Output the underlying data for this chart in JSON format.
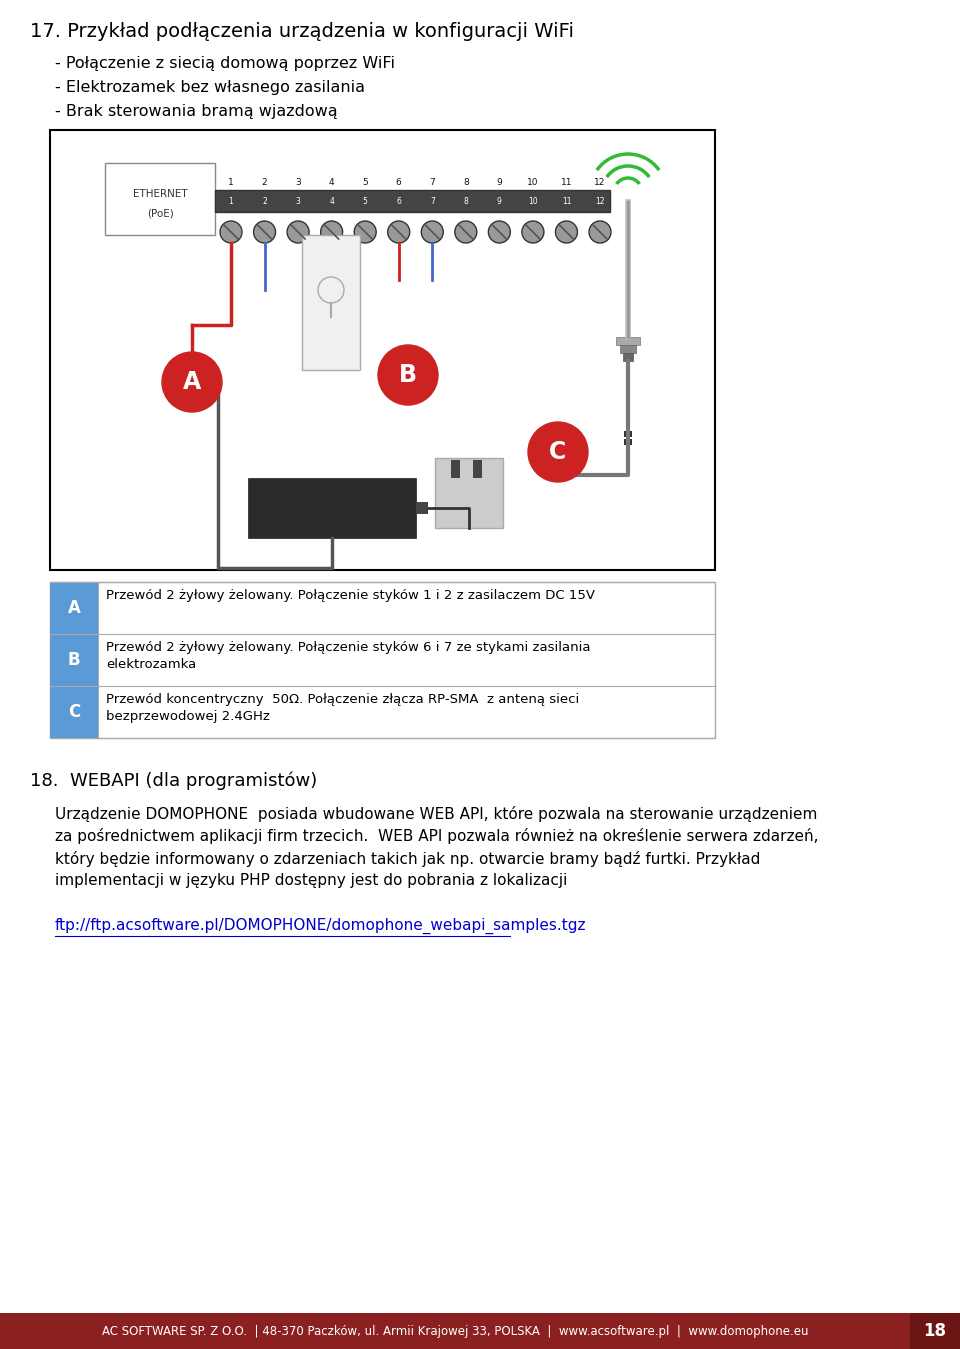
{
  "bg_color": "#ffffff",
  "title": "17. Przykład podłączenia urządzenia w konfiguracji WiFi",
  "bullet1": "- Połączenie z siecią domową poprzez WiFi",
  "bullet2": "- Elektrozamek bez własnego zasilania",
  "bullet3": "- Brak sterowania bramą wjazdową",
  "section18_title": "18.  WEBAPI (dla programistów)",
  "section18_p1": "Urządzenie DOMOPHONE  posiada wbudowane WEB API, które pozwala na sterowanie urządzeniem\nza pośrednictwem aplikacji firm trzecich.  WEB API pozwala również na określenie serwera zdarzeń,\nktóry będzie informowany o zdarzeniach takich jak np. otwarcie bramy bądź furtki. Przykład\nimplementacji w języku PHP dostępny jest do pobrania z lokalizacji",
  "section18_link": "ftp://ftp.acsoftware.pl/DOMOPHONE/domophone_webapi_samples.tgz",
  "footer_text": "AC SOFTWARE SP. Z O.O.  | 48-370 Paczków, ul. Armii Krajowej 33, POLSKA  |  www.acsoftware.pl  |  www.domophone.eu",
  "page_number": "18",
  "table_A_text": "Przewód 2 żyłowy żelowany. Połączenie styków 1 i 2 z zasilaczem DC 15V",
  "table_B_text": "Przewód 2 żyłowy żelowany. Połączenie styków 6 i 7 ze stykami zasilania\nelektrozamka",
  "table_C_text": "Przewód koncentryczny  50Ω. Połączenie złącza RP-SMA  z anteną sieci\nbezprzewodowej 2.4GHz",
  "label_color": "#5b9bd5",
  "footer_bg": "#8b2020",
  "footer_text_color": "#ffffff",
  "page_num_bg": "#6b1515",
  "page_num_color": "#ffffff",
  "border_color": "#000000",
  "text_color": "#000000",
  "link_color": "#0000cc"
}
